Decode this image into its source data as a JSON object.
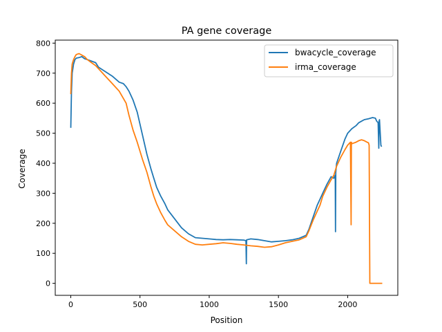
{
  "chart_data": {
    "type": "line",
    "title": "PA gene coverage",
    "xlabel": "Position",
    "ylabel": "Coverage",
    "xlim": [
      -112,
      2362
    ],
    "ylim": [
      -40,
      810
    ],
    "xticks": [
      0,
      500,
      1000,
      1500,
      2000
    ],
    "yticks": [
      0,
      100,
      200,
      300,
      400,
      500,
      600,
      700,
      800
    ],
    "grid": false,
    "legend_position": "top-right",
    "series": [
      {
        "name": "bwacycle_coverage",
        "color": "#1f77b4",
        "x": [
          0,
          5,
          10,
          20,
          30,
          40,
          60,
          80,
          100,
          120,
          150,
          180,
          200,
          250,
          300,
          350,
          380,
          400,
          420,
          450,
          480,
          500,
          520,
          550,
          580,
          600,
          620,
          650,
          680,
          700,
          750,
          800,
          850,
          900,
          950,
          1000,
          1050,
          1100,
          1150,
          1200,
          1250,
          1265,
          1268,
          1270,
          1300,
          1350,
          1400,
          1450,
          1500,
          1550,
          1600,
          1650,
          1700,
          1720,
          1750,
          1780,
          1800,
          1820,
          1850,
          1880,
          1900,
          1910,
          1912,
          1914,
          1920,
          1950,
          1980,
          2000,
          2030,
          2060,
          2080,
          2100,
          2120,
          2150,
          2180,
          2200,
          2210,
          2220,
          2225,
          2227,
          2230,
          2240,
          2245
        ],
        "y": [
          518,
          640,
          700,
          730,
          745,
          750,
          752,
          755,
          748,
          745,
          740,
          735,
          720,
          705,
          690,
          670,
          665,
          655,
          640,
          610,
          570,
          530,
          490,
          430,
          380,
          350,
          320,
          290,
          265,
          245,
          215,
          185,
          165,
          152,
          150,
          148,
          146,
          145,
          146,
          145,
          144,
          142,
          65,
          145,
          148,
          146,
          142,
          138,
          140,
          142,
          145,
          150,
          160,
          180,
          220,
          260,
          280,
          300,
          330,
          355,
          350,
          360,
          172,
          370,
          400,
          440,
          480,
          500,
          515,
          525,
          535,
          540,
          545,
          548,
          552,
          550,
          540,
          535,
          450,
          540,
          545,
          460,
          455
        ]
      },
      {
        "name": "irma_coverage",
        "color": "#ff7f0e",
        "x": [
          0,
          5,
          10,
          20,
          30,
          40,
          60,
          80,
          100,
          120,
          150,
          180,
          200,
          250,
          300,
          350,
          400,
          420,
          450,
          480,
          500,
          520,
          550,
          580,
          600,
          620,
          650,
          680,
          700,
          750,
          800,
          850,
          900,
          950,
          1000,
          1050,
          1100,
          1150,
          1200,
          1250,
          1300,
          1350,
          1400,
          1450,
          1500,
          1550,
          1600,
          1650,
          1700,
          1720,
          1750,
          1780,
          1800,
          1820,
          1850,
          1880,
          1900,
          1920,
          1950,
          1980,
          2000,
          2020,
          2025,
          2027,
          2030,
          2060,
          2080,
          2100,
          2120,
          2140,
          2150,
          2155,
          2160,
          2200,
          2240,
          2250
        ],
        "y": [
          630,
          700,
          730,
          745,
          755,
          762,
          765,
          760,
          755,
          745,
          735,
          725,
          715,
          690,
          665,
          640,
          600,
          560,
          510,
          470,
          440,
          410,
          370,
          320,
          290,
          265,
          235,
          210,
          195,
          175,
          155,
          140,
          130,
          128,
          130,
          132,
          135,
          133,
          130,
          128,
          125,
          123,
          120,
          122,
          128,
          135,
          140,
          145,
          155,
          175,
          210,
          240,
          260,
          290,
          320,
          345,
          360,
          390,
          420,
          445,
          460,
          470,
          195,
          470,
          465,
          470,
          475,
          478,
          475,
          470,
          468,
          460,
          0,
          0,
          0,
          0
        ]
      }
    ]
  }
}
